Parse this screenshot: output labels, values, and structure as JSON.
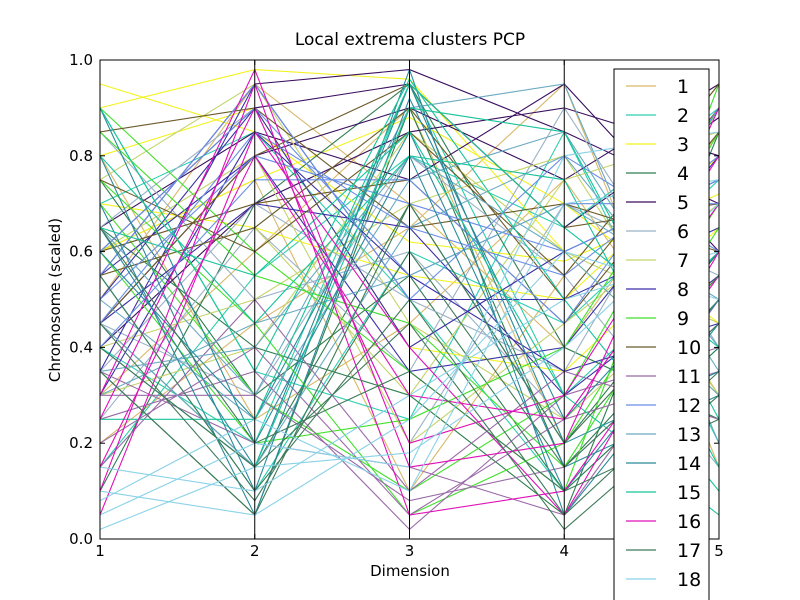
{
  "chart_data": {
    "type": "parallel-coordinates",
    "title": "Local extrema clusters PCP",
    "xlabel": "Dimension",
    "ylabel": "Chromosome (scaled)",
    "xlim": [
      1,
      5
    ],
    "ylim": [
      0.0,
      1.0
    ],
    "x_ticks": [
      "1",
      "2",
      "3",
      "4",
      "5"
    ],
    "y_ticks": [
      "0.0",
      "0.2",
      "0.4",
      "0.6",
      "0.8",
      "1.0"
    ],
    "grid": false,
    "legend_position": "right (overlapping plot)",
    "series": [
      {
        "name": "1",
        "color": "#d9b86a",
        "lines": [
          [
            0.5,
            0.95,
            0.7,
            0.4,
            0.85
          ],
          [
            0.3,
            0.6,
            0.9,
            0.2,
            0.55
          ],
          [
            0.8,
            0.25,
            0.45,
            0.75,
            0.3
          ],
          [
            0.6,
            0.75,
            0.1,
            0.55,
            0.95
          ],
          [
            0.2,
            0.45,
            0.65,
            0.95,
            0.15
          ]
        ]
      },
      {
        "name": "2",
        "color": "#2ccfb0",
        "lines": [
          [
            0.4,
            0.2,
            0.95,
            0.3,
            0.6
          ],
          [
            0.7,
            0.85,
            0.5,
            0.1,
            0.4
          ],
          [
            0.15,
            0.55,
            0.8,
            0.65,
            0.9
          ],
          [
            0.9,
            0.35,
            0.25,
            0.85,
            0.2
          ],
          [
            0.55,
            0.1,
            0.6,
            0.45,
            0.75
          ]
        ]
      },
      {
        "name": "3",
        "color": "#f2f21f",
        "lines": [
          [
            0.9,
            0.98,
            0.96,
            0.6,
            0.3
          ],
          [
            0.7,
            0.65,
            0.55,
            0.5,
            0.8
          ],
          [
            0.8,
            0.9,
            0.4,
            0.35,
            0.65
          ],
          [
            0.6,
            0.75,
            0.88,
            0.7,
            0.45
          ],
          [
            0.95,
            0.85,
            0.62,
            0.58,
            0.72
          ]
        ]
      },
      {
        "name": "4",
        "color": "#2e7d4f",
        "lines": [
          [
            0.35,
            0.05,
            0.9,
            0.15,
            0.5
          ],
          [
            0.65,
            0.4,
            0.3,
            0.05,
            0.85
          ],
          [
            0.1,
            0.7,
            0.95,
            0.4,
            0.25
          ],
          [
            0.45,
            0.15,
            0.7,
            0.2,
            0.6
          ],
          [
            0.75,
            0.3,
            0.55,
            0.1,
            0.4
          ]
        ]
      },
      {
        "name": "5",
        "color": "#3a0f5f",
        "lines": [
          [
            0.55,
            0.95,
            0.98,
            0.85,
            0.7
          ],
          [
            0.45,
            0.8,
            0.9,
            0.75,
            0.95
          ],
          [
            0.65,
            0.85,
            0.75,
            0.95,
            0.6
          ],
          [
            0.4,
            0.7,
            0.85,
            0.9,
            0.8
          ],
          [
            0.6,
            0.9,
            0.95,
            0.65,
            0.88
          ]
        ]
      },
      {
        "name": "6",
        "color": "#9bb2c6",
        "lines": [
          [
            0.25,
            0.65,
            0.35,
            0.9,
            0.4
          ],
          [
            0.85,
            0.5,
            0.6,
            0.25,
            0.7
          ],
          [
            0.45,
            0.3,
            0.8,
            0.55,
            0.15
          ],
          [
            0.65,
            0.9,
            0.2,
            0.7,
            0.55
          ],
          [
            0.35,
            0.7,
            0.5,
            0.35,
            0.9
          ]
        ]
      },
      {
        "name": "7",
        "color": "#c5d46a",
        "lines": [
          [
            0.6,
            0.8,
            0.2,
            0.45,
            0.7
          ],
          [
            0.4,
            0.5,
            0.7,
            0.8,
            0.3
          ],
          [
            0.75,
            0.95,
            0.45,
            0.25,
            0.55
          ],
          [
            0.3,
            0.4,
            0.85,
            0.6,
            0.45
          ],
          [
            0.55,
            0.65,
            0.3,
            0.75,
            0.85
          ]
        ]
      },
      {
        "name": "8",
        "color": "#3a2fa6",
        "lines": [
          [
            0.3,
            0.85,
            0.55,
            0.35,
            0.45
          ],
          [
            0.5,
            0.9,
            0.4,
            0.6,
            0.75
          ],
          [
            0.45,
            0.7,
            0.65,
            0.3,
            0.55
          ],
          [
            0.35,
            0.95,
            0.5,
            0.5,
            0.65
          ],
          [
            0.55,
            0.8,
            0.35,
            0.4,
            0.8
          ]
        ]
      },
      {
        "name": "9",
        "color": "#40e02a",
        "lines": [
          [
            0.7,
            0.3,
            0.1,
            0.3,
            0.85
          ],
          [
            0.85,
            0.55,
            0.45,
            0.15,
            0.65
          ],
          [
            0.6,
            0.2,
            0.25,
            0.4,
            0.9
          ],
          [
            0.75,
            0.45,
            0.05,
            0.2,
            0.7
          ],
          [
            0.9,
            0.6,
            0.35,
            0.1,
            0.95
          ]
        ]
      },
      {
        "name": "10",
        "color": "#6b5a2a",
        "lines": [
          [
            0.75,
            0.6,
            0.85,
            0.55,
            0.95
          ],
          [
            0.45,
            0.8,
            0.95,
            0.65,
            0.7
          ],
          [
            0.6,
            0.7,
            0.75,
            0.45,
            0.85
          ],
          [
            0.85,
            0.9,
            0.65,
            0.7,
            0.6
          ],
          [
            0.55,
            0.65,
            0.9,
            0.5,
            0.9
          ]
        ]
      },
      {
        "name": "11",
        "color": "#9a6aa8",
        "lines": [
          [
            0.2,
            0.4,
            0.05,
            0.25,
            0.35
          ],
          [
            0.35,
            0.2,
            0.15,
            0.05,
            0.5
          ],
          [
            0.15,
            0.5,
            0.1,
            0.35,
            0.25
          ],
          [
            0.3,
            0.3,
            0.08,
            0.15,
            0.45
          ],
          [
            0.25,
            0.35,
            0.02,
            0.3,
            0.4
          ]
        ]
      },
      {
        "name": "12",
        "color": "#6a8ee8",
        "lines": [
          [
            0.45,
            0.85,
            0.65,
            0.55,
            0.8
          ],
          [
            0.55,
            0.95,
            0.5,
            0.8,
            0.6
          ],
          [
            0.4,
            0.75,
            0.75,
            0.45,
            0.9
          ],
          [
            0.6,
            0.9,
            0.55,
            0.7,
            0.7
          ],
          [
            0.5,
            0.8,
            0.7,
            0.6,
            0.75
          ]
        ]
      },
      {
        "name": "13",
        "color": "#6aaac2",
        "lines": [
          [
            0.5,
            0.25,
            0.75,
            0.85,
            0.35
          ],
          [
            0.3,
            0.45,
            0.55,
            0.7,
            0.5
          ],
          [
            0.65,
            0.3,
            0.9,
            0.95,
            0.2
          ],
          [
            0.45,
            0.15,
            0.65,
            0.8,
            0.4
          ],
          [
            0.35,
            0.4,
            0.8,
            0.6,
            0.3
          ]
        ]
      },
      {
        "name": "14",
        "color": "#2a8a9a",
        "lines": [
          [
            0.8,
            0.1,
            0.98,
            0.05,
            0.45
          ],
          [
            0.6,
            0.25,
            0.85,
            0.15,
            0.3
          ],
          [
            0.7,
            0.05,
            0.92,
            0.25,
            0.6
          ],
          [
            0.9,
            0.2,
            0.8,
            0.1,
            0.5
          ],
          [
            0.65,
            0.15,
            0.95,
            0.2,
            0.35
          ]
        ]
      },
      {
        "name": "15",
        "color": "#17c49a",
        "lines": [
          [
            0.9,
            0.35,
            0.96,
            0.5,
            0.1
          ],
          [
            0.4,
            0.15,
            0.9,
            0.85,
            0.25
          ],
          [
            0.65,
            0.55,
            0.85,
            0.3,
            0.05
          ],
          [
            0.25,
            0.25,
            0.95,
            0.65,
            0.4
          ],
          [
            0.8,
            0.45,
            0.8,
            0.75,
            0.15
          ]
        ]
      },
      {
        "name": "16",
        "color": "#e010b8",
        "lines": [
          [
            0.1,
            0.95,
            0.05,
            0.1,
            0.55
          ],
          [
            0.25,
            0.9,
            0.2,
            0.3,
            0.8
          ],
          [
            0.05,
            0.85,
            0.4,
            0.05,
            0.6
          ],
          [
            0.3,
            0.98,
            0.15,
            0.2,
            0.9
          ],
          [
            0.15,
            0.8,
            0.3,
            0.25,
            0.7
          ]
        ]
      },
      {
        "name": "17",
        "color": "#3f7a5a",
        "lines": [
          [
            0.55,
            0.1,
            0.5,
            0.05,
            0.35
          ],
          [
            0.35,
            0.05,
            0.7,
            0.2,
            0.55
          ],
          [
            0.65,
            0.2,
            0.35,
            0.1,
            0.25
          ],
          [
            0.45,
            0.08,
            0.6,
            0.15,
            0.45
          ],
          [
            0.4,
            0.15,
            0.45,
            0.02,
            0.3
          ]
        ]
      },
      {
        "name": "18",
        "color": "#8ad2e8",
        "lines": [
          [
            0.02,
            0.15,
            0.18,
            0.4,
            0.7
          ],
          [
            0.1,
            0.05,
            0.25,
            0.6,
            0.5
          ],
          [
            0.05,
            0.2,
            0.15,
            0.8,
            0.85
          ],
          [
            0.15,
            0.1,
            0.3,
            0.5,
            0.6
          ],
          [
            0.08,
            0.25,
            0.1,
            0.7,
            0.75
          ]
        ]
      }
    ]
  }
}
